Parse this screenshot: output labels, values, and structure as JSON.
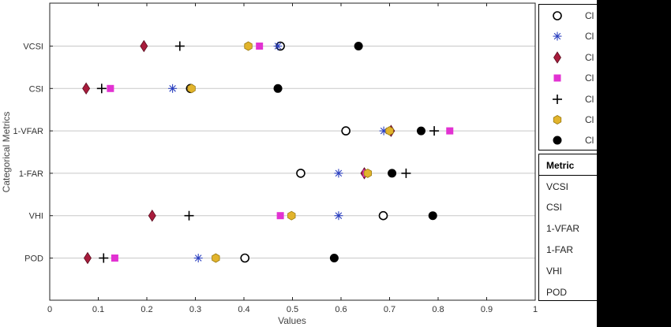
{
  "chart_data": {
    "type": "scatter",
    "ylabel": "Categorical Metrics",
    "xlabel": "Values",
    "xlim": [
      0,
      1
    ],
    "x_ticks": [
      "0",
      "0.1",
      "0.2",
      "0.3",
      "0.4",
      "0.5",
      "0.6",
      "0.7",
      "0.8",
      "0.9",
      "1"
    ],
    "categories": [
      "VCSI",
      "CSI",
      "1-VFAR",
      "1-FAR",
      "VHI",
      "POD"
    ],
    "grid": "horizontal",
    "legend_position": "right",
    "series": [
      {
        "name": "Cl",
        "marker": "circle-open",
        "color": "#000000",
        "values": [
          0.475,
          0.29,
          0.61,
          0.517,
          0.687,
          0.402
        ]
      },
      {
        "name": "Cl",
        "marker": "asterisk",
        "color": "#2a3fbf",
        "values": [
          0.47,
          0.253,
          0.688,
          0.595,
          0.595,
          0.306
        ]
      },
      {
        "name": "Cl",
        "marker": "diamond",
        "color": "#a81c3c",
        "values": [
          0.194,
          0.075,
          0.703,
          0.648,
          0.211,
          0.078
        ]
      },
      {
        "name": "Cl",
        "marker": "square",
        "color": "#e232d2",
        "values": [
          0.432,
          0.125,
          0.824,
          0.652,
          0.475,
          0.134
        ]
      },
      {
        "name": "Cl",
        "marker": "plus",
        "color": "#000000",
        "values": [
          0.268,
          0.107,
          0.792,
          0.734,
          0.287,
          0.111
        ]
      },
      {
        "name": "Cl",
        "marker": "hexagon",
        "color": "#e2b42c",
        "values": [
          0.409,
          0.292,
          0.7,
          0.655,
          0.498,
          0.342
        ]
      },
      {
        "name": "Cl",
        "marker": "circle-filled",
        "color": "#000000",
        "values": [
          0.636,
          0.47,
          0.765,
          0.705,
          0.789,
          0.586
        ]
      }
    ]
  },
  "metric_table": {
    "header": "Metric",
    "items": [
      "VCSI",
      "CSI",
      "1-VFAR",
      "1-FAR",
      "VHI",
      "POD"
    ]
  }
}
